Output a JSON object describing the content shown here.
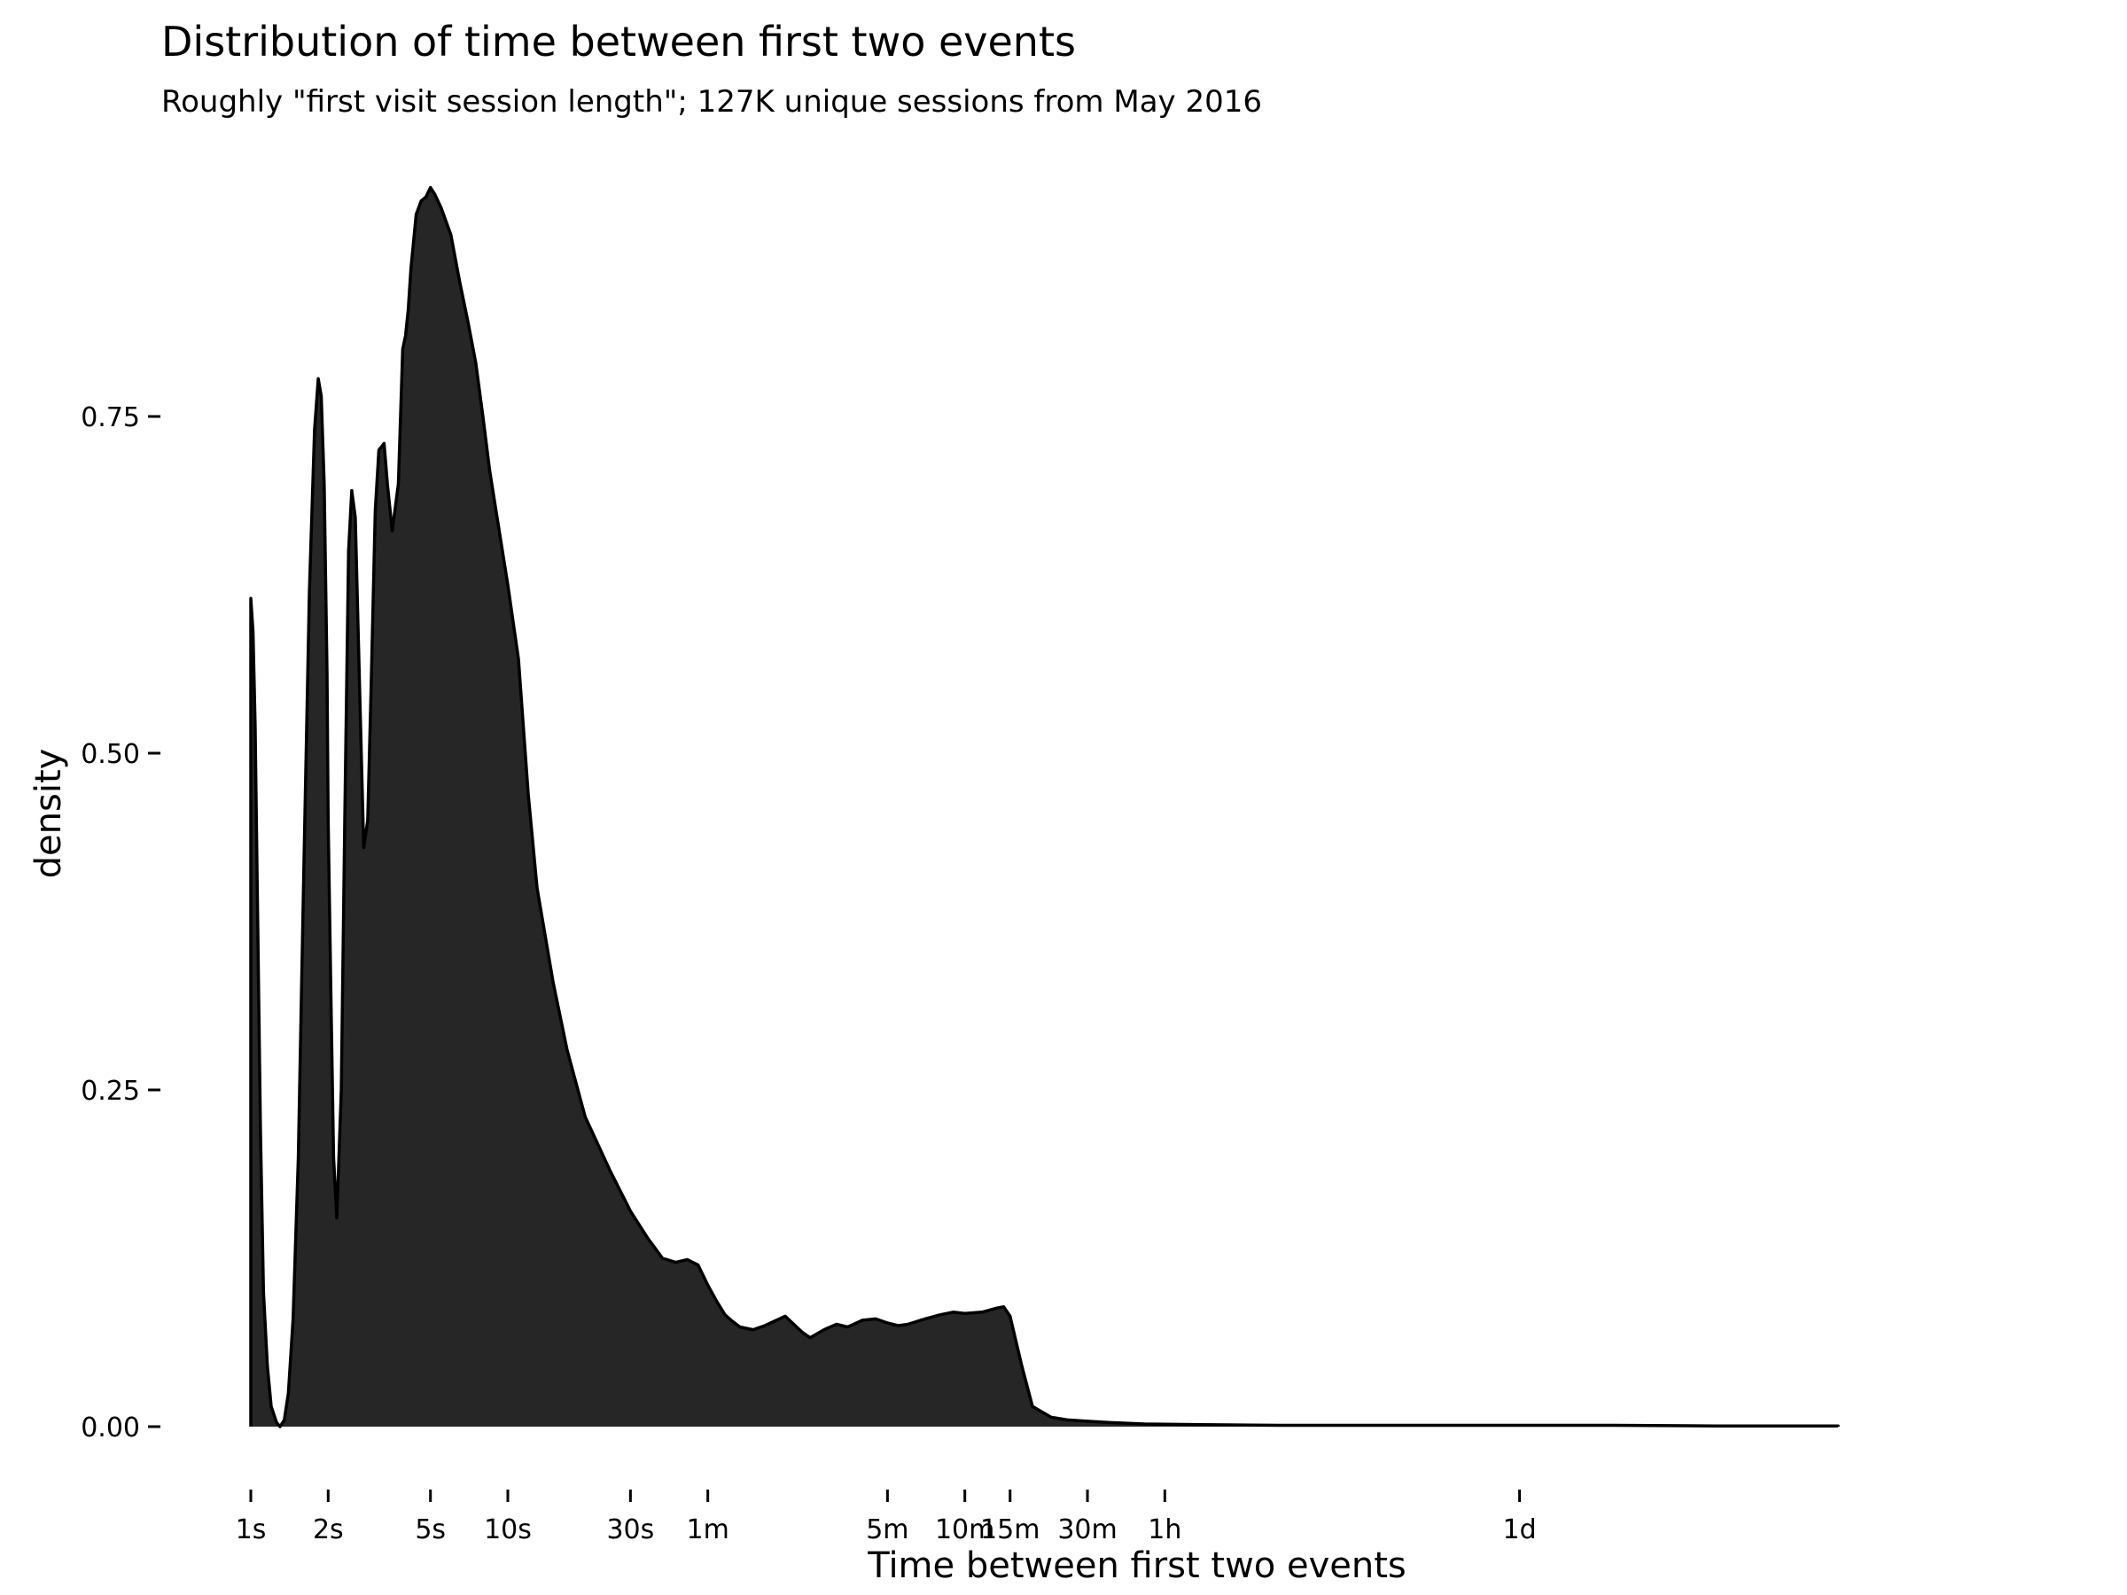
{
  "chart_data": {
    "type": "area",
    "title": "Distribution of time between first two events",
    "subtitle": "Roughly \"first visit session length\"; 127K unique sessions from May 2016",
    "xlabel": "Time between first two events",
    "ylabel": "density",
    "x_scale": "log10",
    "x_unit": "seconds",
    "ylim": [
      0,
      0.95
    ],
    "grid": false,
    "legend": "none",
    "fill_color": "#262626",
    "line_color": "#000000",
    "y_ticks": [
      {
        "value": 0.0,
        "label": "0.00"
      },
      {
        "value": 0.25,
        "label": "0.25"
      },
      {
        "value": 0.5,
        "label": "0.50"
      },
      {
        "value": 0.75,
        "label": "0.75"
      }
    ],
    "x_ticks": [
      {
        "value": 1,
        "label": "1s"
      },
      {
        "value": 2,
        "label": "2s"
      },
      {
        "value": 5,
        "label": "5s"
      },
      {
        "value": 10,
        "label": "10s"
      },
      {
        "value": 30,
        "label": "30s"
      },
      {
        "value": 60,
        "label": "1m"
      },
      {
        "value": 300,
        "label": "5m"
      },
      {
        "value": 600,
        "label": "10m"
      },
      {
        "value": 900,
        "label": "15m"
      },
      {
        "value": 1800,
        "label": "30m"
      },
      {
        "value": 3600,
        "label": "1h"
      },
      {
        "value": 86400,
        "label": "1d"
      }
    ],
    "series": [
      {
        "x": [
          1.0,
          1.02,
          1.04,
          1.06,
          1.09,
          1.12,
          1.16,
          1.2,
          1.26,
          1.3,
          1.35,
          1.4,
          1.46,
          1.53,
          1.61,
          1.69,
          1.77,
          1.83,
          1.88,
          1.93,
          1.98,
          2.0,
          2.05,
          2.1,
          2.16,
          2.25,
          2.32,
          2.4,
          2.47,
          2.55,
          2.65,
          2.75,
          2.85,
          2.94,
          3.05,
          3.15,
          3.3,
          3.4,
          3.55,
          3.75,
          3.9,
          4.0,
          4.1,
          4.2,
          4.4,
          4.6,
          4.8,
          5.0,
          5.2,
          5.5,
          6.0,
          6.5,
          7.0,
          7.5,
          8.0,
          8.5,
          9.0,
          10.0,
          11.0,
          12.0,
          13.0,
          15.0,
          17.0,
          20.0,
          25.0,
          30.0,
          35.0,
          40.0,
          45.0,
          50.0,
          55.0,
          60.0,
          65.0,
          70.0,
          75.0,
          80.0,
          90.0,
          100.0,
          120.0,
          140.0,
          150.0,
          170.0,
          190.0,
          210.0,
          240.0,
          270.0,
          300.0,
          330.0,
          360.0,
          420.0,
          480.0,
          540.0,
          600.0,
          700.0,
          800.0,
          850.0,
          900.0,
          1000.0,
          1100.0,
          1300.0,
          1500.0,
          1800.0,
          2200.0,
          3000.0,
          5000.0,
          10000.0,
          20000.0,
          86400.0,
          200000.0,
          500000.0,
          1500000.0
        ],
        "y": [
          0.615,
          0.59,
          0.52,
          0.4,
          0.22,
          0.1,
          0.045,
          0.015,
          0.003,
          0.0,
          0.005,
          0.025,
          0.08,
          0.2,
          0.42,
          0.62,
          0.74,
          0.778,
          0.765,
          0.7,
          0.56,
          0.45,
          0.32,
          0.2,
          0.155,
          0.25,
          0.45,
          0.65,
          0.695,
          0.675,
          0.55,
          0.43,
          0.45,
          0.55,
          0.68,
          0.725,
          0.73,
          0.7,
          0.665,
          0.7,
          0.8,
          0.81,
          0.83,
          0.86,
          0.9,
          0.91,
          0.913,
          0.92,
          0.915,
          0.905,
          0.885,
          0.85,
          0.82,
          0.79,
          0.75,
          0.71,
          0.68,
          0.625,
          0.57,
          0.47,
          0.4,
          0.33,
          0.28,
          0.23,
          0.19,
          0.16,
          0.14,
          0.125,
          0.122,
          0.124,
          0.12,
          0.105,
          0.093,
          0.083,
          0.078,
          0.074,
          0.072,
          0.075,
          0.082,
          0.07,
          0.066,
          0.072,
          0.076,
          0.074,
          0.079,
          0.08,
          0.077,
          0.075,
          0.076,
          0.08,
          0.083,
          0.085,
          0.084,
          0.085,
          0.088,
          0.089,
          0.082,
          0.045,
          0.015,
          0.007,
          0.005,
          0.004,
          0.003,
          0.002,
          0.0015,
          0.001,
          0.001,
          0.001,
          0.001,
          0.0005,
          0.0005
        ]
      }
    ]
  }
}
